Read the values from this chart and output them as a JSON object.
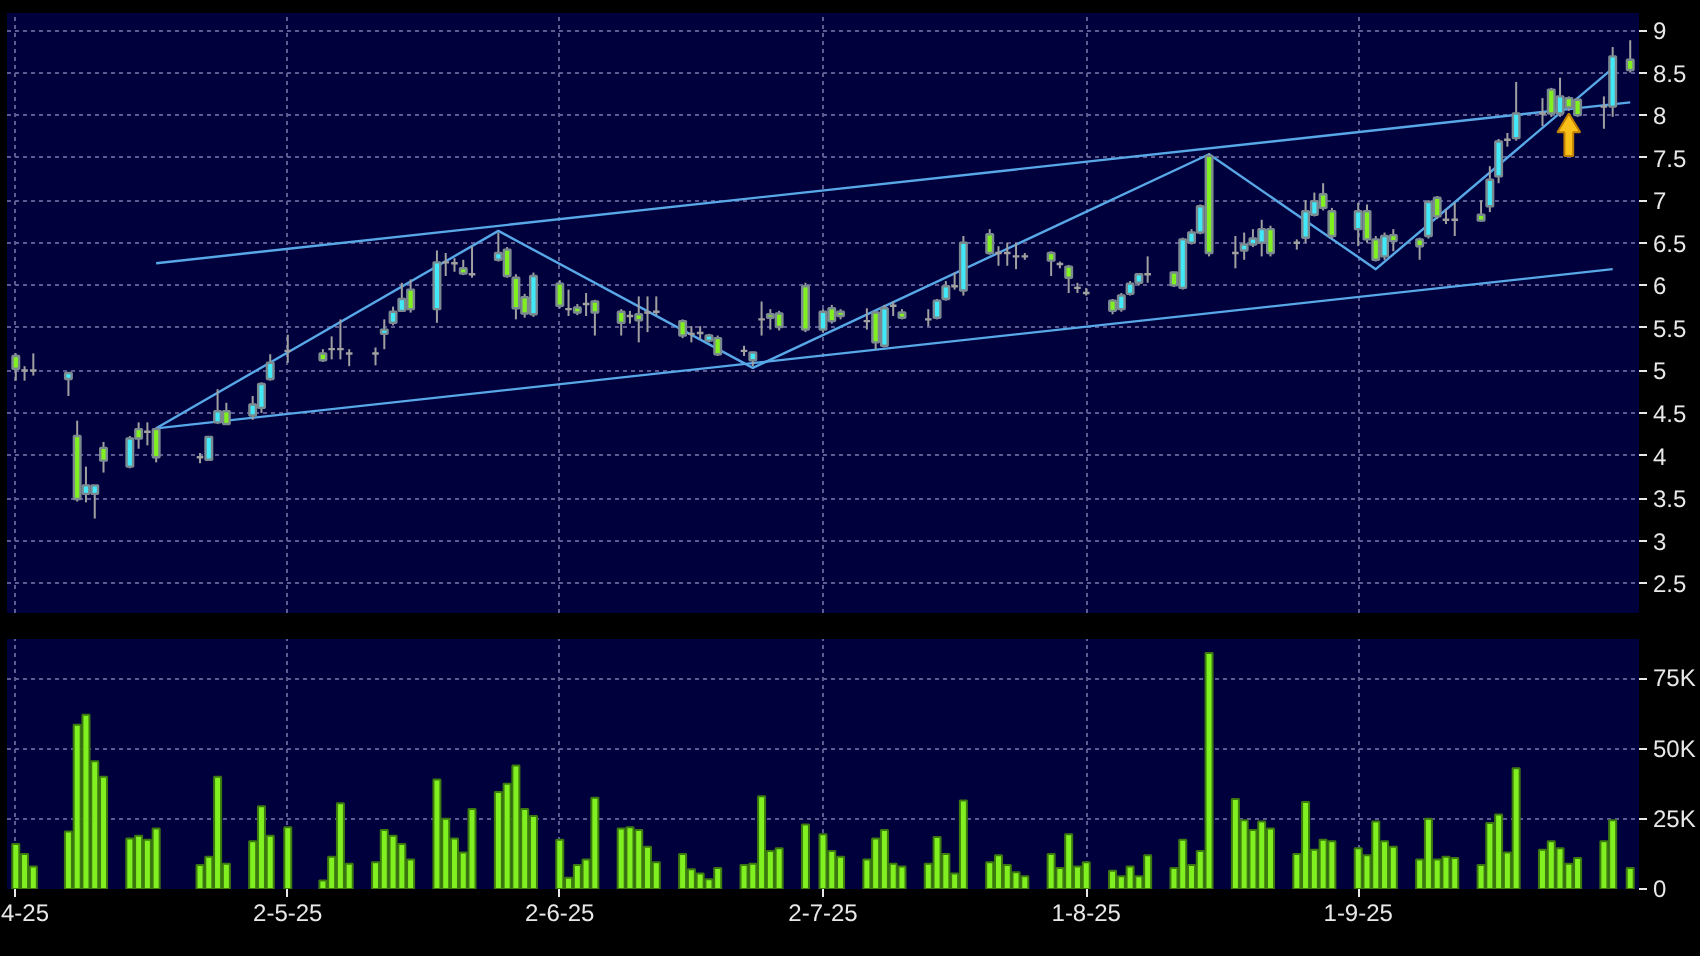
{
  "chart_data": [
    {
      "type": "candlestick",
      "x": [
        "2025-04-01",
        "2025-04-02",
        "2025-04-03",
        "2025-04-07",
        "2025-04-08",
        "2025-04-09",
        "2025-04-10",
        "2025-04-11",
        "2025-04-14",
        "2025-04-15",
        "2025-04-16",
        "2025-04-17",
        "2025-04-22",
        "2025-04-23",
        "2025-04-24",
        "2025-04-25",
        "2025-04-28",
        "2025-04-29",
        "2025-04-30",
        "2025-05-02",
        "2025-05-06",
        "2025-05-07",
        "2025-05-08",
        "2025-05-09",
        "2025-05-12",
        "2025-05-13",
        "2025-05-14",
        "2025-05-15",
        "2025-05-16",
        "2025-05-19",
        "2025-05-20",
        "2025-05-21",
        "2025-05-22",
        "2025-05-23",
        "2025-05-26",
        "2025-05-27",
        "2025-05-28",
        "2025-05-29",
        "2025-05-30",
        "2025-06-02",
        "2025-06-03",
        "2025-06-04",
        "2025-06-05",
        "2025-06-06",
        "2025-06-09",
        "2025-06-10",
        "2025-06-11",
        "2025-06-12",
        "2025-06-13",
        "2025-06-16",
        "2025-06-17",
        "2025-06-18",
        "2025-06-19",
        "2025-06-20",
        "2025-06-23",
        "2025-06-24",
        "2025-06-25",
        "2025-06-26",
        "2025-06-27",
        "2025-06-30",
        "2025-07-02",
        "2025-07-03",
        "2025-07-04",
        "2025-07-07",
        "2025-07-08",
        "2025-07-09",
        "2025-07-10",
        "2025-07-11",
        "2025-07-14",
        "2025-07-15",
        "2025-07-16",
        "2025-07-17",
        "2025-07-18",
        "2025-07-21",
        "2025-07-22",
        "2025-07-23",
        "2025-07-24",
        "2025-07-25",
        "2025-07-28",
        "2025-07-29",
        "2025-07-30",
        "2025-07-31",
        "2025-08-01",
        "2025-08-04",
        "2025-08-05",
        "2025-08-06",
        "2025-08-07",
        "2025-08-08",
        "2025-08-11",
        "2025-08-12",
        "2025-08-13",
        "2025-08-14",
        "2025-08-15",
        "2025-08-18",
        "2025-08-19",
        "2025-08-20",
        "2025-08-21",
        "2025-08-22",
        "2025-08-25",
        "2025-08-26",
        "2025-08-27",
        "2025-08-28",
        "2025-08-29",
        "2025-09-01",
        "2025-09-02",
        "2025-09-03",
        "2025-09-04",
        "2025-09-05",
        "2025-09-08",
        "2025-09-09",
        "2025-09-10",
        "2025-09-11",
        "2025-09-12",
        "2025-09-15",
        "2025-09-16",
        "2025-09-17",
        "2025-09-18",
        "2025-09-19",
        "2025-09-22",
        "2025-09-23",
        "2025-09-24",
        "2025-09-25",
        "2025-09-26",
        "2025-09-29",
        "2025-09-30",
        "2025-10-02"
      ],
      "ohlc": [
        [
          5.17,
          5.2,
          4.88,
          5.02
        ],
        [
          5.0,
          5.05,
          4.88,
          5.0
        ],
        [
          5.0,
          5.2,
          4.94,
          5.0
        ],
        [
          4.9,
          4.97,
          4.7,
          4.97
        ],
        [
          4.23,
          4.41,
          3.46,
          3.49
        ],
        [
          3.55,
          3.87,
          3.45,
          3.65
        ],
        [
          3.55,
          3.65,
          3.26,
          3.65
        ],
        [
          4.09,
          4.16,
          3.8,
          3.94
        ],
        [
          3.87,
          4.23,
          3.85,
          4.2
        ],
        [
          4.31,
          4.39,
          4.08,
          4.2
        ],
        [
          4.28,
          4.39,
          4.12,
          4.28
        ],
        [
          4.31,
          4.33,
          3.92,
          3.98
        ],
        [
          3.98,
          4.03,
          3.91,
          3.98
        ],
        [
          3.95,
          4.22,
          3.94,
          4.22
        ],
        [
          4.39,
          4.78,
          4.37,
          4.52
        ],
        [
          4.52,
          4.62,
          4.36,
          4.37
        ],
        [
          4.47,
          4.7,
          4.42,
          4.6
        ],
        [
          4.56,
          4.86,
          4.5,
          4.84
        ],
        [
          4.9,
          5.19,
          4.88,
          5.09
        ],
        [
          5.23,
          5.42,
          5.09,
          5.23
        ],
        [
          5.2,
          5.25,
          5.1,
          5.12
        ],
        [
          5.25,
          5.4,
          5.13,
          5.25
        ],
        [
          5.25,
          5.6,
          5.13,
          5.25
        ],
        [
          5.2,
          5.25,
          5.05,
          5.2
        ],
        [
          5.2,
          5.27,
          5.06,
          5.2
        ],
        [
          5.43,
          5.6,
          5.25,
          5.48
        ],
        [
          5.56,
          5.75,
          5.53,
          5.69
        ],
        [
          5.7,
          6.03,
          5.69,
          5.84
        ],
        [
          5.95,
          6.07,
          5.68,
          5.72
        ],
        [
          5.72,
          6.41,
          5.56,
          6.27
        ],
        [
          6.27,
          6.38,
          6.11,
          6.27
        ],
        [
          6.26,
          6.32,
          6.16,
          6.26
        ],
        [
          6.2,
          6.3,
          6.12,
          6.14
        ],
        [
          6.13,
          6.46,
          6.09,
          6.13
        ],
        [
          6.3,
          6.62,
          6.28,
          6.38
        ],
        [
          6.42,
          6.45,
          6.09,
          6.11
        ],
        [
          6.09,
          6.13,
          5.6,
          5.73
        ],
        [
          5.86,
          5.9,
          5.62,
          5.67
        ],
        [
          5.66,
          6.15,
          5.63,
          6.11
        ],
        [
          6.02,
          6.06,
          5.73,
          5.76
        ],
        [
          5.72,
          5.95,
          5.64,
          5.72
        ],
        [
          5.74,
          5.78,
          5.65,
          5.68
        ],
        [
          5.78,
          5.91,
          5.64,
          5.78
        ],
        [
          5.81,
          5.83,
          5.41,
          5.68
        ],
        [
          5.69,
          5.72,
          5.41,
          5.56
        ],
        [
          5.64,
          5.7,
          5.55,
          5.64
        ],
        [
          5.66,
          5.87,
          5.33,
          5.59
        ],
        [
          5.68,
          5.87,
          5.45,
          5.68
        ],
        [
          5.69,
          5.87,
          5.65,
          5.69
        ],
        [
          5.58,
          5.6,
          5.38,
          5.41
        ],
        [
          5.43,
          5.52,
          5.33,
          5.43
        ],
        [
          5.44,
          5.52,
          5.37,
          5.44
        ],
        [
          5.35,
          5.43,
          5.33,
          5.41
        ],
        [
          5.38,
          5.41,
          5.17,
          5.19
        ],
        [
          5.23,
          5.29,
          5.17,
          5.23
        ],
        [
          5.12,
          5.22,
          5.05,
          5.21
        ],
        [
          5.6,
          5.81,
          5.41,
          5.6
        ],
        [
          5.66,
          5.72,
          5.48,
          5.62
        ],
        [
          5.67,
          5.7,
          5.47,
          5.51
        ],
        [
          5.99,
          6.03,
          5.45,
          5.48
        ],
        [
          5.48,
          5.72,
          5.45,
          5.69
        ],
        [
          5.73,
          5.77,
          5.55,
          5.58
        ],
        [
          5.69,
          5.72,
          5.6,
          5.64
        ],
        [
          5.58,
          5.73,
          5.48,
          5.58
        ],
        [
          5.68,
          5.7,
          5.25,
          5.33
        ],
        [
          5.29,
          5.77,
          5.27,
          5.73
        ],
        [
          5.76,
          5.81,
          5.64,
          5.76
        ],
        [
          5.68,
          5.72,
          5.6,
          5.62
        ],
        [
          5.6,
          5.72,
          5.52,
          5.6
        ],
        [
          5.62,
          5.84,
          5.6,
          5.82
        ],
        [
          5.84,
          6.05,
          5.82,
          5.99
        ],
        [
          5.99,
          6.15,
          5.95,
          5.99
        ],
        [
          5.94,
          6.58,
          5.88,
          6.5
        ],
        [
          6.6,
          6.66,
          6.36,
          6.38
        ],
        [
          6.38,
          6.46,
          6.23,
          6.38
        ],
        [
          6.38,
          6.5,
          6.23,
          6.38
        ],
        [
          6.34,
          6.5,
          6.19,
          6.34
        ],
        [
          6.34,
          6.38,
          6.3,
          6.34
        ],
        [
          6.38,
          6.4,
          6.11,
          6.29
        ],
        [
          6.25,
          6.28,
          6.2,
          6.25
        ],
        [
          6.22,
          6.24,
          5.91,
          6.09
        ],
        [
          5.97,
          6.03,
          5.91,
          5.97
        ],
        [
          5.91,
          5.97,
          5.88,
          5.91
        ],
        [
          5.82,
          5.84,
          5.66,
          5.7
        ],
        [
          5.72,
          5.91,
          5.69,
          5.88
        ],
        [
          5.9,
          6.05,
          5.88,
          6.02
        ],
        [
          6.03,
          6.13,
          6.0,
          6.13
        ],
        [
          6.13,
          6.34,
          6.03,
          6.13
        ],
        [
          6.15,
          6.16,
          5.98,
          6.0
        ],
        [
          5.97,
          6.56,
          5.95,
          6.54
        ],
        [
          6.5,
          6.66,
          6.48,
          6.62
        ],
        [
          6.62,
          6.95,
          6.6,
          6.93
        ],
        [
          7.52,
          7.55,
          6.34,
          6.38
        ],
        [
          6.38,
          6.58,
          6.2,
          6.38
        ],
        [
          6.41,
          6.62,
          6.3,
          6.48
        ],
        [
          6.48,
          6.66,
          6.45,
          6.55
        ],
        [
          6.5,
          6.77,
          6.34,
          6.66
        ],
        [
          6.66,
          6.7,
          6.34,
          6.38
        ],
        [
          6.5,
          6.54,
          6.42,
          6.5
        ],
        [
          6.56,
          7.0,
          6.5,
          6.87
        ],
        [
          6.83,
          7.09,
          6.81,
          6.99
        ],
        [
          7.07,
          7.2,
          6.88,
          6.91
        ],
        [
          6.87,
          6.91,
          6.55,
          6.58
        ],
        [
          6.66,
          6.97,
          6.46,
          6.87
        ],
        [
          6.87,
          6.95,
          6.5,
          6.54
        ],
        [
          6.54,
          6.58,
          6.28,
          6.3
        ],
        [
          6.34,
          6.62,
          6.3,
          6.58
        ],
        [
          6.59,
          6.66,
          6.4,
          6.52
        ],
        [
          6.54,
          6.56,
          6.3,
          6.46
        ],
        [
          6.58,
          7.0,
          6.55,
          6.98
        ],
        [
          7.03,
          7.05,
          6.78,
          6.81
        ],
        [
          6.77,
          6.89,
          6.72,
          6.77
        ],
        [
          6.77,
          6.97,
          6.58,
          6.77
        ],
        [
          6.83,
          7.0,
          6.75,
          6.76
        ],
        [
          6.93,
          7.4,
          6.86,
          7.24
        ],
        [
          7.28,
          7.72,
          7.2,
          7.69
        ],
        [
          7.71,
          7.79,
          7.63,
          7.71
        ],
        [
          7.73,
          8.39,
          7.7,
          8.02
        ],
        [
          8.02,
          8.2,
          7.87,
          8.02
        ],
        [
          8.3,
          8.32,
          7.98,
          8.02
        ],
        [
          8.02,
          8.44,
          7.98,
          8.22
        ],
        [
          8.2,
          8.22,
          8.05,
          8.09
        ],
        [
          8.18,
          8.2,
          7.98,
          8.0
        ],
        [
          8.1,
          8.22,
          7.84,
          8.1
        ],
        [
          8.1,
          8.8,
          7.98,
          8.69
        ],
        [
          8.65,
          8.88,
          8.5,
          8.53
        ]
      ],
      "colors": [
        "#80f020",
        "#a0a0a0",
        "#a0a0a0",
        "#40e8f8",
        "#80f020",
        "#40e8f8",
        "#40e8f8",
        "#80f020",
        "#40e8f8",
        "#80f020",
        "#a0a0a0",
        "#80f020",
        "#a0a0a0",
        "#40e8f8",
        "#40e8f8",
        "#80f020",
        "#40e8f8",
        "#40e8f8",
        "#40e8f8",
        "#a0a0a0",
        "#80f020",
        "#a0a0a0",
        "#a0a0a0",
        "#a0a0a0",
        "#a0a0a0",
        "#40e8f8",
        "#40e8f8",
        "#40e8f8",
        "#80f020",
        "#40e8f8",
        "#a0a0a0",
        "#a0a0a0",
        "#80f020",
        "#a0a0a0",
        "#40e8f8",
        "#80f020",
        "#80f020",
        "#80f020",
        "#40e8f8",
        "#80f020",
        "#a0a0a0",
        "#80f020",
        "#a0a0a0",
        "#80f020",
        "#80f020",
        "#a0a0a0",
        "#80f020",
        "#a0a0a0",
        "#a0a0a0",
        "#80f020",
        "#a0a0a0",
        "#a0a0a0",
        "#40e8f8",
        "#80f020",
        "#a0a0a0",
        "#40e8f8",
        "#a0a0a0",
        "#80f020",
        "#80f020",
        "#80f020",
        "#40e8f8",
        "#80f020",
        "#80f020",
        "#a0a0a0",
        "#80f020",
        "#40e8f8",
        "#a0a0a0",
        "#80f020",
        "#a0a0a0",
        "#40e8f8",
        "#40e8f8",
        "#a0a0a0",
        "#40e8f8",
        "#80f020",
        "#a0a0a0",
        "#a0a0a0",
        "#a0a0a0",
        "#a0a0a0",
        "#80f020",
        "#a0a0a0",
        "#80f020",
        "#a0a0a0",
        "#a0a0a0",
        "#80f020",
        "#40e8f8",
        "#40e8f8",
        "#40e8f8",
        "#a0a0a0",
        "#80f020",
        "#40e8f8",
        "#40e8f8",
        "#40e8f8",
        "#80f020",
        "#a0a0a0",
        "#40e8f8",
        "#40e8f8",
        "#40e8f8",
        "#80f020",
        "#a0a0a0",
        "#40e8f8",
        "#40e8f8",
        "#80f020",
        "#80f020",
        "#40e8f8",
        "#80f020",
        "#80f020",
        "#40e8f8",
        "#80f020",
        "#80f020",
        "#40e8f8",
        "#80f020",
        "#a0a0a0",
        "#a0a0a0",
        "#80f020",
        "#40e8f8",
        "#40e8f8",
        "#a0a0a0",
        "#40e8f8",
        "#a0a0a0",
        "#80f020",
        "#40e8f8",
        "#80f020",
        "#80f020",
        "#a0a0a0",
        "#40e8f8",
        "#80f020"
      ],
      "series": [
        {
          "type": "line",
          "color": "#58a8e8",
          "x": [
            "2025-04-17",
            "2025-10-02"
          ],
          "values": [
            6.26,
            8.15
          ]
        },
        {
          "type": "line",
          "color": "#58a8e8",
          "x": [
            "2025-04-17",
            "2025-09-30"
          ],
          "values": [
            4.32,
            6.19
          ]
        },
        {
          "type": "line",
          "color": "#58a8e8",
          "x": [
            "2025-04-17",
            "2025-05-26",
            "2025-06-24",
            "2025-08-15",
            "2025-09-03",
            "2025-09-30"
          ],
          "values": [
            4.32,
            6.64,
            5.03,
            7.54,
            6.19,
            8.55
          ]
        }
      ],
      "xlim": [
        "2025-03-31",
        "2025-10-03"
      ],
      "xticks": [
        {
          "value": "2025-04-01",
          "label": null
        },
        {
          "value": "2025-05-02",
          "label": null
        },
        {
          "value": "2025-06-02",
          "label": null
        },
        {
          "value": "2025-07-02",
          "label": null
        },
        {
          "value": "2025-08-01",
          "label": null
        },
        {
          "value": "2025-09-01",
          "label": null
        }
      ],
      "ylim": [
        2.15,
        9.2
      ],
      "yticks": [
        2.5,
        3,
        3.5,
        4,
        4.5,
        5,
        5.5,
        6,
        6.5,
        7,
        7.5,
        8,
        8.5,
        9
      ],
      "tick_labels": "y",
      "grid": true
    },
    {
      "type": "bar",
      "color": "#80f020",
      "x": [
        "2025-04-01",
        "2025-04-02",
        "2025-04-03",
        "2025-04-07",
        "2025-04-08",
        "2025-04-09",
        "2025-04-10",
        "2025-04-11",
        "2025-04-14",
        "2025-04-15",
        "2025-04-16",
        "2025-04-17",
        "2025-04-22",
        "2025-04-23",
        "2025-04-24",
        "2025-04-25",
        "2025-04-28",
        "2025-04-29",
        "2025-04-30",
        "2025-05-02",
        "2025-05-06",
        "2025-05-07",
        "2025-05-08",
        "2025-05-09",
        "2025-05-12",
        "2025-05-13",
        "2025-05-14",
        "2025-05-15",
        "2025-05-16",
        "2025-05-19",
        "2025-05-20",
        "2025-05-21",
        "2025-05-22",
        "2025-05-23",
        "2025-05-26",
        "2025-05-27",
        "2025-05-28",
        "2025-05-29",
        "2025-05-30",
        "2025-06-02",
        "2025-06-03",
        "2025-06-04",
        "2025-06-05",
        "2025-06-06",
        "2025-06-09",
        "2025-06-10",
        "2025-06-11",
        "2025-06-12",
        "2025-06-13",
        "2025-06-16",
        "2025-06-17",
        "2025-06-18",
        "2025-06-19",
        "2025-06-20",
        "2025-06-23",
        "2025-06-24",
        "2025-06-25",
        "2025-06-26",
        "2025-06-27",
        "2025-06-30",
        "2025-07-02",
        "2025-07-03",
        "2025-07-04",
        "2025-07-07",
        "2025-07-08",
        "2025-07-09",
        "2025-07-10",
        "2025-07-11",
        "2025-07-14",
        "2025-07-15",
        "2025-07-16",
        "2025-07-17",
        "2025-07-18",
        "2025-07-21",
        "2025-07-22",
        "2025-07-23",
        "2025-07-24",
        "2025-07-25",
        "2025-07-28",
        "2025-07-29",
        "2025-07-30",
        "2025-07-31",
        "2025-08-01",
        "2025-08-04",
        "2025-08-05",
        "2025-08-06",
        "2025-08-07",
        "2025-08-08",
        "2025-08-11",
        "2025-08-12",
        "2025-08-13",
        "2025-08-14",
        "2025-08-15",
        "2025-08-18",
        "2025-08-19",
        "2025-08-20",
        "2025-08-21",
        "2025-08-22",
        "2025-08-25",
        "2025-08-26",
        "2025-08-27",
        "2025-08-28",
        "2025-08-29",
        "2025-09-01",
        "2025-09-02",
        "2025-09-03",
        "2025-09-04",
        "2025-09-05",
        "2025-09-08",
        "2025-09-09",
        "2025-09-10",
        "2025-09-11",
        "2025-09-12",
        "2025-09-15",
        "2025-09-16",
        "2025-09-17",
        "2025-09-18",
        "2025-09-19",
        "2025-09-22",
        "2025-09-23",
        "2025-09-24",
        "2025-09-25",
        "2025-09-26",
        "2025-09-29",
        "2025-09-30",
        "2025-10-02"
      ],
      "values": [
        16000,
        12500,
        8000,
        20500,
        58500,
        62000,
        45500,
        40000,
        18000,
        19000,
        17500,
        21500,
        8500,
        11500,
        40000,
        9000,
        17000,
        29500,
        19000,
        22000,
        3000,
        11500,
        30500,
        9000,
        9500,
        21000,
        19000,
        16000,
        10500,
        39000,
        25000,
        18000,
        13000,
        28500,
        34500,
        37500,
        44000,
        28500,
        26000,
        17500,
        4000,
        8500,
        10500,
        32500,
        21500,
        22000,
        21000,
        15000,
        9500,
        12500,
        7000,
        5500,
        3500,
        7500,
        8500,
        9000,
        33000,
        13500,
        14500,
        23000,
        19500,
        13500,
        11500,
        10500,
        18000,
        21000,
        9000,
        8000,
        9000,
        18500,
        12500,
        5500,
        31500,
        9500,
        12000,
        8500,
        6000,
        4500,
        12500,
        7500,
        19500,
        8000,
        9500,
        6500,
        4500,
        8000,
        4500,
        12000,
        7500,
        17500,
        8500,
        13500,
        84000,
        32000,
        24500,
        21000,
        24000,
        21500,
        12500,
        31000,
        14000,
        17500,
        17000,
        14500,
        12000,
        24000,
        17000,
        15000,
        10500,
        25000,
        10500,
        11500,
        11000,
        8500,
        23500,
        26500,
        13000,
        43000,
        14000,
        17000,
        14500,
        9000,
        11000,
        17000,
        24500,
        7500
      ],
      "xlim": [
        "2025-03-31",
        "2025-10-03"
      ],
      "xticks": [
        {
          "value": "2025-04-01",
          "label": "4-25"
        },
        {
          "value": "2025-05-02",
          "label": "2-5-25"
        },
        {
          "value": "2025-06-02",
          "label": "2-6-25"
        },
        {
          "value": "2025-07-02",
          "label": "2-7-25"
        },
        {
          "value": "2025-08-01",
          "label": "1-8-25"
        },
        {
          "value": "2025-09-01",
          "label": "1-9-25"
        }
      ],
      "ylim": [
        0,
        89000
      ],
      "yticks": [
        0,
        {
          "value": 25000,
          "label": "25K"
        },
        {
          "value": 50000,
          "label": "50K"
        },
        {
          "value": 75000,
          "label": "75K"
        }
      ],
      "grid": true
    }
  ]
}
